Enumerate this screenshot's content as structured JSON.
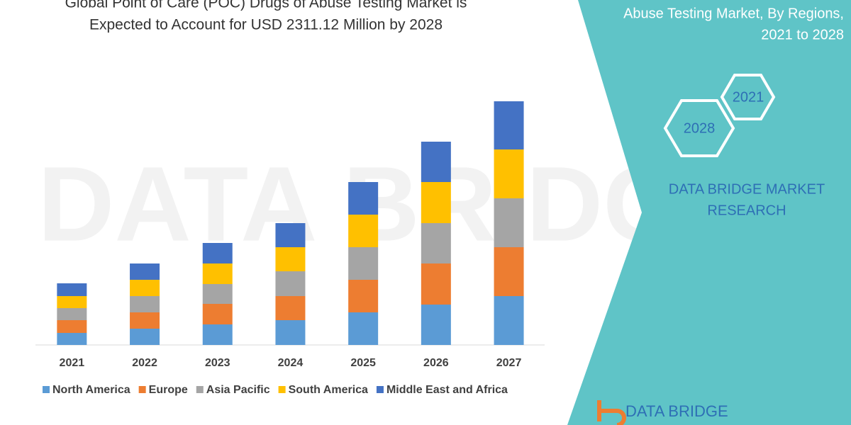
{
  "chart_data": {
    "type": "stacked_bar",
    "title": [
      "Global Point of Care (POC) Drugs of Abuse Testing Market is",
      "Expected to Account for USD 2311.12 Million by 2028"
    ],
    "side_title": [
      "Abuse Testing Market, By Regions,",
      "2021 to 2028"
    ],
    "badges": [
      "2021",
      "2028"
    ],
    "brand": [
      "DATA BRIDGE MARKET",
      "RESEARCH"
    ],
    "logo": "DATA BRIDGE",
    "categories": [
      "2021",
      "2022",
      "2023",
      "2024",
      "2025",
      "2026",
      "2027"
    ],
    "series": [
      {
        "name": "North America",
        "color": "#5b9bd5",
        "values": [
          17,
          23,
          29,
          35,
          46,
          57,
          69
        ]
      },
      {
        "name": "Europe",
        "color": "#ed7d31",
        "values": [
          18,
          23,
          29,
          34,
          46,
          58,
          69
        ]
      },
      {
        "name": "Asia Pacific",
        "color": "#a5a5a5",
        "values": [
          17,
          23,
          28,
          35,
          46,
          57,
          69
        ]
      },
      {
        "name": "South America",
        "color": "#ffc000",
        "values": [
          17,
          23,
          29,
          34,
          46,
          58,
          69
        ]
      },
      {
        "name": "Middle East and Africa",
        "color": "#4472c4",
        "values": [
          18,
          23,
          29,
          34,
          46,
          57,
          68
        ]
      }
    ]
  }
}
